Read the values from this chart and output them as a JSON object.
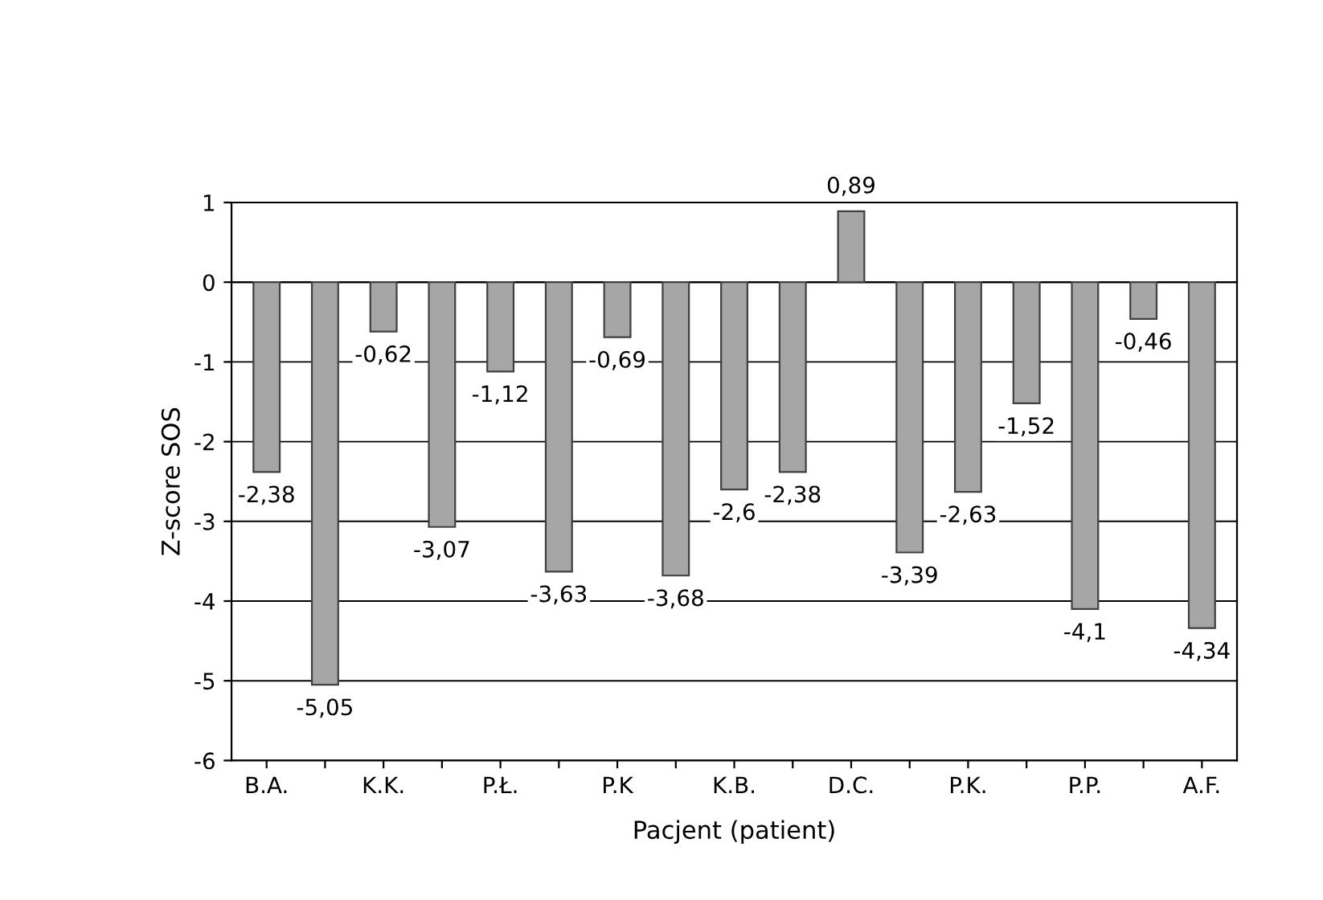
{
  "chart_data": {
    "type": "bar",
    "xlabel": "Pacjent (patient)",
    "ylabel": "Z-score SOS",
    "categories": [
      "B.A.",
      null,
      "K.K.",
      null,
      "P.Ł.",
      null,
      "P.K",
      null,
      "K.B.",
      null,
      "D.C.",
      null,
      "P.K.",
      null,
      "P.P.",
      null,
      "A.F."
    ],
    "values": [
      -2.38,
      -5.05,
      -0.62,
      -3.07,
      -1.12,
      -3.63,
      -0.69,
      -3.68,
      -2.6,
      -2.38,
      0.89,
      -3.39,
      -2.63,
      -1.52,
      -4.1,
      -0.46,
      -4.34
    ],
    "value_labels": [
      "-2,38",
      "-5,05",
      "-0,62",
      "-3,07",
      "-1,12",
      "-3,63",
      "-0,69",
      "-3,68",
      "-2,6",
      "-2,38",
      "0,89",
      "-3,39",
      "-2,63",
      "-1,52",
      "-4,1",
      "-0,46",
      "-4,34"
    ],
    "color": "#a6a6a6",
    "ylim": [
      -6,
      1
    ],
    "yticks": [
      -6,
      -5,
      -4,
      -3,
      -2,
      -1,
      0,
      1
    ],
    "grid": "y",
    "legend": false
  }
}
